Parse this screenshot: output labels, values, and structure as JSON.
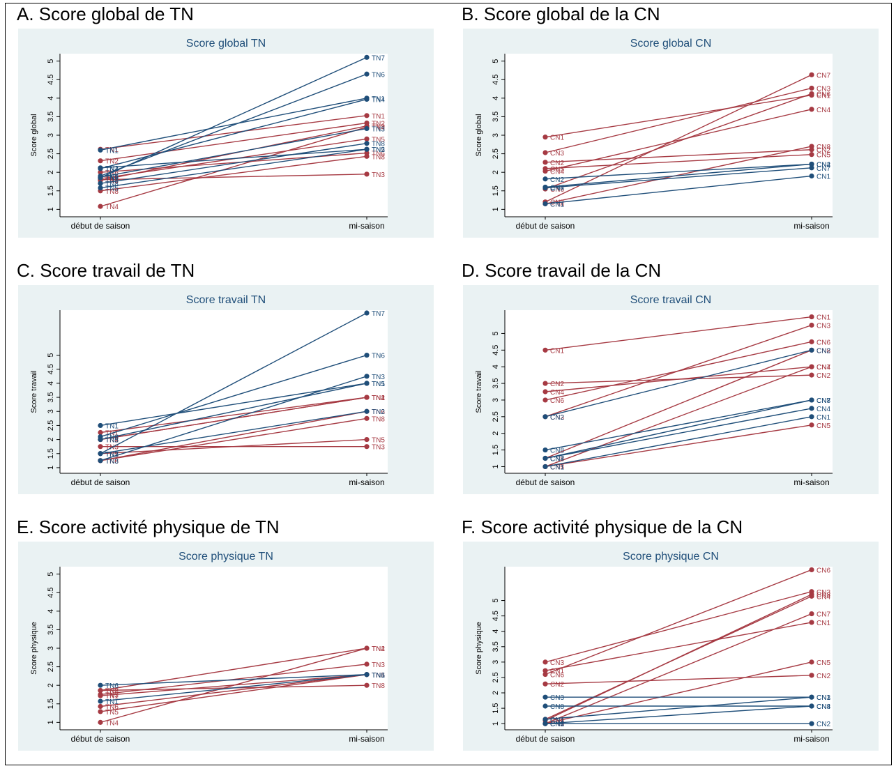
{
  "colors": {
    "background": "#eaf2f3",
    "plot": "#ffffff",
    "red": "#a63a43",
    "blue": "#1f4e79",
    "title": "#1f4e79",
    "grid": "#e5e5e5"
  },
  "chart_data": [
    {
      "type": "line",
      "heading": "A. Score global de TN",
      "title": "Score global TN",
      "ylabel": "Score global",
      "xlabel": "",
      "categories": [
        "début de saison",
        "mi-saison"
      ],
      "ylim": [
        0.8,
        5.2
      ],
      "yticks": [
        "1",
        "1.5",
        "2",
        "2.5",
        "3",
        "3.5",
        "4",
        "4.5",
        "5"
      ],
      "grid": false,
      "legend": "none",
      "series": [
        {
          "name": "TN1",
          "color": "red",
          "values": [
            2.62,
            3.53
          ]
        },
        {
          "name": "TN2",
          "color": "red",
          "values": [
            2.31,
            3.33
          ]
        },
        {
          "name": "TN3",
          "color": "red",
          "values": [
            1.8,
            1.95
          ]
        },
        {
          "name": "TN4",
          "color": "red",
          "values": [
            1.08,
            3.22
          ]
        },
        {
          "name": "TN5",
          "color": "red",
          "values": [
            1.83,
            2.9
          ]
        },
        {
          "name": "TN6",
          "color": "red",
          "values": [
            2.0,
            2.52
          ]
        },
        {
          "name": "TN8",
          "color": "red",
          "values": [
            1.5,
            2.43
          ]
        },
        {
          "name": "TN9",
          "color": "red",
          "values": [
            1.78,
            3.25
          ]
        },
        {
          "name": "TN1",
          "color": "blue",
          "values": [
            2.6,
            4.0
          ]
        },
        {
          "name": "TN2",
          "color": "blue",
          "values": [
            2.12,
            2.62
          ]
        },
        {
          "name": "TN3",
          "color": "blue",
          "values": [
            1.87,
            3.18
          ]
        },
        {
          "name": "TN4",
          "color": "blue",
          "values": [
            2.1,
            3.97
          ]
        },
        {
          "name": "TN5",
          "color": "blue",
          "values": [
            1.58,
            2.62
          ]
        },
        {
          "name": "TN6",
          "color": "blue",
          "values": [
            1.9,
            4.65
          ]
        },
        {
          "name": "TN7",
          "color": "blue",
          "values": [
            1.85,
            5.1
          ]
        },
        {
          "name": "TN8",
          "color": "blue",
          "values": [
            1.7,
            2.78
          ]
        }
      ]
    },
    {
      "type": "line",
      "heading": "B. Score global de la CN",
      "title": "Score global CN",
      "ylabel": "Score global",
      "xlabel": "",
      "categories": [
        "début de saison",
        "mi-saison"
      ],
      "ylim": [
        0.8,
        5.2
      ],
      "yticks": [
        "1",
        "1.5",
        "2",
        "2.5",
        "3",
        "3.5",
        "4",
        "4.5",
        "5"
      ],
      "grid": false,
      "legend": "none",
      "series": [
        {
          "name": "CN1",
          "color": "red",
          "values": [
            2.95,
            4.08
          ]
        },
        {
          "name": "CN3",
          "color": "red",
          "values": [
            2.53,
            4.27
          ]
        },
        {
          "name": "CN2",
          "color": "red",
          "values": [
            2.27,
            2.61
          ]
        },
        {
          "name": "CN5",
          "color": "red",
          "values": [
            2.1,
            2.48
          ]
        },
        {
          "name": "CN4",
          "color": "red",
          "values": [
            2.03,
            3.7
          ]
        },
        {
          "name": "CN6",
          "color": "red",
          "values": [
            1.55,
            4.12
          ]
        },
        {
          "name": "CN7",
          "color": "red",
          "values": [
            1.2,
            4.63
          ]
        },
        {
          "name": "CN8",
          "color": "red",
          "values": [
            1.15,
            2.7
          ]
        },
        {
          "name": "CN2",
          "color": "blue",
          "values": [
            1.82,
            2.22
          ]
        },
        {
          "name": "CN4",
          "color": "blue",
          "values": [
            1.6,
            2.22
          ]
        },
        {
          "name": "CN7",
          "color": "blue",
          "values": [
            1.58,
            2.12
          ]
        },
        {
          "name": "CN1",
          "color": "blue",
          "values": [
            1.15,
            1.9
          ]
        }
      ]
    },
    {
      "type": "line",
      "heading": "C. Score travail de TN",
      "title": "Score travail TN",
      "ylabel": "Score travail",
      "xlabel": "",
      "categories": [
        "début de saison",
        "mi-saison"
      ],
      "ylim": [
        0.8,
        6.6
      ],
      "yticks": [
        "1",
        "1.5",
        "2",
        "2.5",
        "3",
        "3.5",
        "4",
        "4.5",
        "5"
      ],
      "grid": false,
      "legend": "none",
      "series": [
        {
          "name": "TN1",
          "color": "red",
          "values": [
            2.25,
            3.5
          ]
        },
        {
          "name": "TN4",
          "color": "red",
          "values": [
            2.0,
            3.5
          ]
        },
        {
          "name": "TN3",
          "color": "red",
          "values": [
            1.75,
            1.75
          ]
        },
        {
          "name": "TN5",
          "color": "red",
          "values": [
            1.5,
            2.0
          ]
        },
        {
          "name": "TN6",
          "color": "red",
          "values": [
            1.25,
            3.0
          ]
        },
        {
          "name": "TN8",
          "color": "red",
          "values": [
            1.25,
            2.75
          ]
        },
        {
          "name": "TN2",
          "color": "red",
          "values": [
            2.0,
            3.5
          ]
        },
        {
          "name": "TN1",
          "color": "blue",
          "values": [
            2.5,
            4.0
          ]
        },
        {
          "name": "TN6",
          "color": "blue",
          "values": [
            2.1,
            5.0
          ]
        },
        {
          "name": "TN2",
          "color": "blue",
          "values": [
            1.5,
            3.0
          ]
        },
        {
          "name": "TN3",
          "color": "blue",
          "values": [
            1.25,
            4.25
          ]
        },
        {
          "name": "TN7",
          "color": "blue",
          "values": [
            1.5,
            6.5
          ]
        },
        {
          "name": "TN5",
          "color": "blue",
          "values": [
            2.0,
            4.0
          ]
        }
      ]
    },
    {
      "type": "line",
      "heading": "D. Score travail de la CN",
      "title": "Score travail CN",
      "ylabel": "Score travail",
      "xlabel": "",
      "categories": [
        "début de saison",
        "mi-saison"
      ],
      "ylim": [
        0.8,
        5.7
      ],
      "yticks": [
        "1",
        "1.5",
        "2",
        "2.5",
        "3",
        "3.5",
        "4",
        "4.5",
        "5"
      ],
      "grid": false,
      "legend": "none",
      "series": [
        {
          "name": "CN1",
          "color": "red",
          "values": [
            4.5,
            5.5
          ]
        },
        {
          "name": "CN2",
          "color": "red",
          "values": [
            3.5,
            3.75
          ]
        },
        {
          "name": "CN4",
          "color": "red",
          "values": [
            3.25,
            4.0
          ]
        },
        {
          "name": "CN6",
          "color": "red",
          "values": [
            3.0,
            4.75
          ]
        },
        {
          "name": "CN3",
          "color": "red",
          "values": [
            2.5,
            5.25
          ]
        },
        {
          "name": "CN8",
          "color": "red",
          "values": [
            1.25,
            4.5
          ]
        },
        {
          "name": "CN7",
          "color": "red",
          "values": [
            1.0,
            4.0
          ]
        },
        {
          "name": "CN5",
          "color": "red",
          "values": [
            1.0,
            2.25
          ]
        },
        {
          "name": "CN2",
          "color": "blue",
          "values": [
            2.5,
            4.5
          ]
        },
        {
          "name": "CN8",
          "color": "blue",
          "values": [
            1.5,
            3.0
          ]
        },
        {
          "name": "CN4",
          "color": "blue",
          "values": [
            1.25,
            2.75
          ]
        },
        {
          "name": "CN7",
          "color": "blue",
          "values": [
            1.25,
            3.0
          ]
        },
        {
          "name": "CN1",
          "color": "blue",
          "values": [
            1.0,
            2.5
          ]
        }
      ]
    },
    {
      "type": "line",
      "heading": "E. Score activité physique de TN",
      "title": "Score physique TN",
      "ylabel": "Score physique",
      "xlabel": "",
      "categories": [
        "début de saison",
        "mi-saison"
      ],
      "ylim": [
        0.8,
        5.2
      ],
      "yticks": [
        "1",
        "1.5",
        "2",
        "2.5",
        "3",
        "3.5",
        "4",
        "4.5",
        "5"
      ],
      "grid": false,
      "legend": "none",
      "series": [
        {
          "name": "TN2",
          "color": "red",
          "values": [
            1.86,
            3.0
          ]
        },
        {
          "name": "TN4",
          "color": "red",
          "values": [
            1.0,
            3.0
          ]
        },
        {
          "name": "TN3",
          "color": "red",
          "values": [
            1.75,
            2.57
          ]
        },
        {
          "name": "TN1",
          "color": "red",
          "values": [
            1.72,
            2.29
          ]
        },
        {
          "name": "TN6",
          "color": "red",
          "values": [
            1.43,
            2.29
          ]
        },
        {
          "name": "TN5",
          "color": "red",
          "values": [
            1.29,
            2.29
          ]
        },
        {
          "name": "TN8",
          "color": "red",
          "values": [
            1.86,
            2.0
          ]
        },
        {
          "name": "TN6",
          "color": "blue",
          "values": [
            2.0,
            2.29
          ]
        },
        {
          "name": "TN1",
          "color": "blue",
          "values": [
            1.57,
            2.29
          ]
        }
      ]
    },
    {
      "type": "line",
      "heading": "F. Score activité physique de la CN",
      "title": "Score physique CN",
      "ylabel": "Score physique",
      "xlabel": "",
      "categories": [
        "début de saison",
        "mi-saison"
      ],
      "ylim": [
        0.8,
        6.1
      ],
      "yticks": [
        "1",
        "1.5",
        "2",
        "2.5",
        "3",
        "3.5",
        "4",
        "4.5",
        "5"
      ],
      "grid": false,
      "legend": "none",
      "series": [
        {
          "name": "CN3",
          "color": "red",
          "values": [
            3.0,
            5.29
          ]
        },
        {
          "name": "CN1",
          "color": "red",
          "values": [
            2.72,
            4.29
          ]
        },
        {
          "name": "CN6",
          "color": "red",
          "values": [
            2.6,
            6.0
          ]
        },
        {
          "name": "CN2",
          "color": "red",
          "values": [
            2.29,
            2.57
          ]
        },
        {
          "name": "CN4",
          "color": "red",
          "values": [
            1.14,
            5.14
          ]
        },
        {
          "name": "CN7",
          "color": "red",
          "values": [
            1.0,
            4.57
          ]
        },
        {
          "name": "CN5",
          "color": "red",
          "values": [
            1.0,
            3.0
          ]
        },
        {
          "name": "CN8",
          "color": "red",
          "values": [
            1.1,
            5.2
          ]
        },
        {
          "name": "CN3",
          "color": "blue",
          "values": [
            1.86,
            1.86
          ]
        },
        {
          "name": "CN8",
          "color": "blue",
          "values": [
            1.57,
            1.57
          ]
        },
        {
          "name": "CN1",
          "color": "blue",
          "values": [
            1.14,
            1.86
          ]
        },
        {
          "name": "CN4",
          "color": "blue",
          "values": [
            1.0,
            1.57
          ]
        },
        {
          "name": "CN2",
          "color": "blue",
          "values": [
            1.0,
            1.0
          ]
        }
      ]
    }
  ]
}
